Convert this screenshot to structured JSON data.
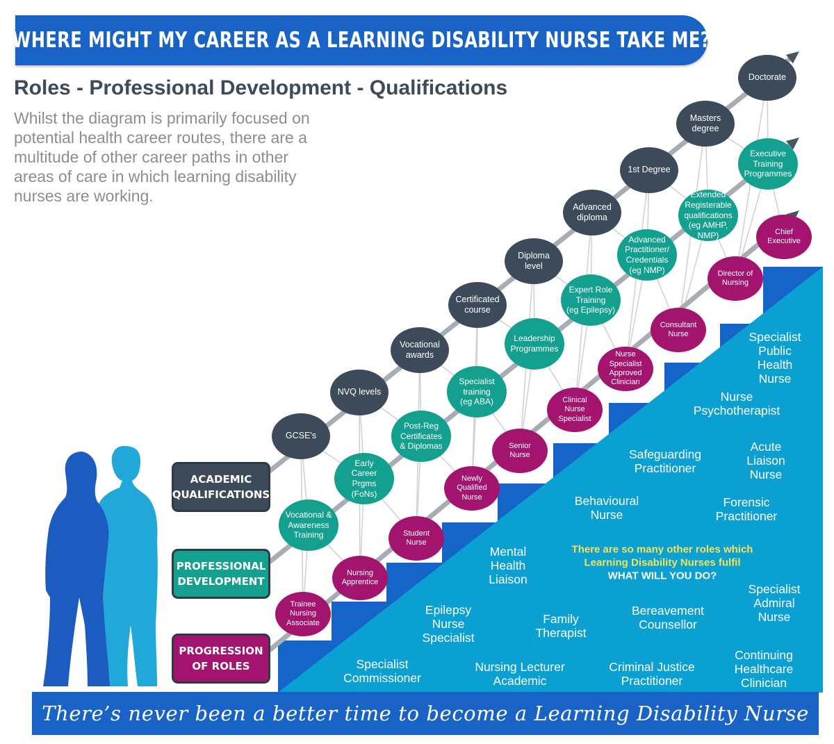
{
  "title": "WHERE MIGHT MY CAREER AS A LEARNING DISABILITY NURSE TAKE ME?",
  "subtitle": "Roles - Professional Development - Qualifications",
  "intro": "Whilst the diagram is primarily focused on potential health career routes, there are a multitude of other career paths in other areas of care in which learning disability nurses are working.",
  "labels": {
    "academic": "ACADEMIC\nQUALIFICATIONS",
    "professional": "PROFESSIONAL\nDEVELOPMENT",
    "progression": "PROGRESSION\nOF ROLES"
  },
  "qualifications": [
    "GCSE’s",
    "NVQ levels",
    "Vocational\nawards",
    "Certificated\ncourse",
    "Diploma\nlevel",
    "Advanced\ndiploma",
    "1st Degree",
    "Masters\ndegree",
    "Doctorate"
  ],
  "development": [
    "Vocational &\nAwareness\nTraining",
    "Early\nCareer\nPrgms\n(FoNs)",
    "Post-Reg\nCertificates\n& Diplomas",
    "Specialist\ntraining\n(eg ABA)",
    "Leadership\nProgrammes",
    "Expert Role\nTraining\n(eg Epilepsy)",
    "Advanced\nPractitioner/\nCredentials\n(eg NMP)",
    "Extended\nRegisterable\nqualifications\n(eg AMHP,\nNMP)",
    "Executive\nTraining\nProgrammes"
  ],
  "roles": [
    "Trainee\nNursing\nAssociate",
    "Nursing\nApprentice",
    "Student\nNurse",
    "Newly\nQualified\nNurse",
    "Senior\nNurse",
    "Clinical\nNurse\nSpecialist",
    "Nurse\nSpecialist\nApproved\nClinician",
    "Consultant\nNurse",
    "Director of\nNursing",
    "Chief\nExecutive"
  ],
  "other_roles": {
    "specialist_public_health": "Specialist\nPublic Health\nNurse",
    "psychotherapist": "Nurse\nPsychotherapist",
    "safeguarding": "Safeguarding\nPractitioner",
    "acute_liaison": "Acute\nLiaison\nNurse",
    "behavioural": "Behavioural\nNurse",
    "forensic": "Forensic\nPractitioner",
    "mental_health": "Mental\nHealth\nLiaison",
    "admiral": "Specialist\nAdmiral\nNurse",
    "epilepsy": "Epilepsy\nNurse\nSpecialist",
    "family": "Family\nTherapist",
    "bereavement": "Bereavement\nCounsellor",
    "commissioner": "Specialist\nCommissioner",
    "lecturer": "Nursing Lecturer\nAcademic",
    "criminal_justice": "Criminal Justice\nPractitioner",
    "continuing": "Continuing\nHealthcare\nClinician"
  },
  "callout": {
    "line1": "There are so many other roles which",
    "line2": "Learning Disability Nurses fulfil",
    "line3": "WHAT WILL YOU DO?"
  },
  "footer": "There’s never been a better time to become a Learning Disability Nurse",
  "colors": {
    "banner_blue": "#1a63c6",
    "stair_dark": "#1565c8",
    "stair_light": "#0aa0d2",
    "qualification_node": "#3d4a5a",
    "development_node": "#14a08e",
    "role_node": "#a2146e",
    "arrow_grey": "#a8acb3",
    "callout_yellow": "#f4e35a"
  }
}
